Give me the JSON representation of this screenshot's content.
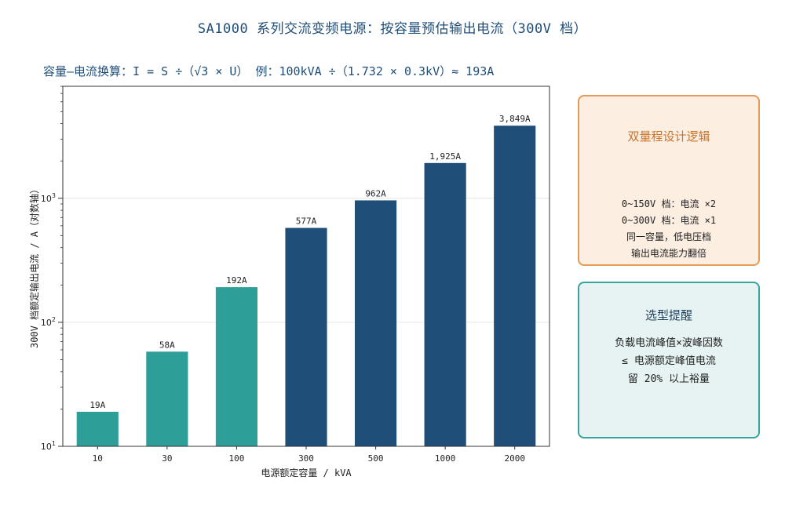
{
  "title": "SA1000 系列交流变频电源：按容量预估输出电流（300V 档）",
  "subtitle": "容量—电流换算：I = S ÷（√3 × U）  例：100kVA ÷（1.732 × 0.3kV）≈ 193A",
  "colors": {
    "teal": "#2e9e99",
    "navy": "#1f4e79",
    "orange": "#e59a56"
  },
  "chart_data": {
    "type": "bar",
    "categories": [
      "10",
      "30",
      "100",
      "300",
      "500",
      "1000",
      "2000"
    ],
    "values": [
      19,
      58,
      192,
      577,
      962,
      1925,
      3849
    ],
    "data_labels": [
      "19A",
      "58A",
      "192A",
      "577A",
      "962A",
      "1,925A",
      "3,849A"
    ],
    "bar_colors": [
      "#2e9e99",
      "#2e9e99",
      "#2e9e99",
      "#1f4e79",
      "#1f4e79",
      "#1f4e79",
      "#1f4e79"
    ],
    "xlabel": "电源额定容量 / kVA",
    "ylabel": "300V 档额定输出电流 / A（对数轴）",
    "yscale": "log",
    "ylim": [
      10,
      8000
    ],
    "yticks": [
      {
        "value": 10,
        "base": "10",
        "exp": "1"
      },
      {
        "value": 100,
        "base": "10",
        "exp": "2"
      },
      {
        "value": 1000,
        "base": "10",
        "exp": "3"
      }
    ],
    "grid": "horizontal"
  },
  "panels": {
    "logic": {
      "title": "双量程设计逻辑",
      "lines": [
        "0~150V 档：电流 ×2",
        "0~300V 档：电流 ×1",
        "同一容量，低电压档",
        "输出电流能力翻倍"
      ]
    },
    "tip": {
      "title": "选型提醒",
      "lines": [
        "负载电流峰值×波峰因数",
        "≤ 电源额定峰值电流",
        "留 20% 以上裕量"
      ]
    }
  }
}
